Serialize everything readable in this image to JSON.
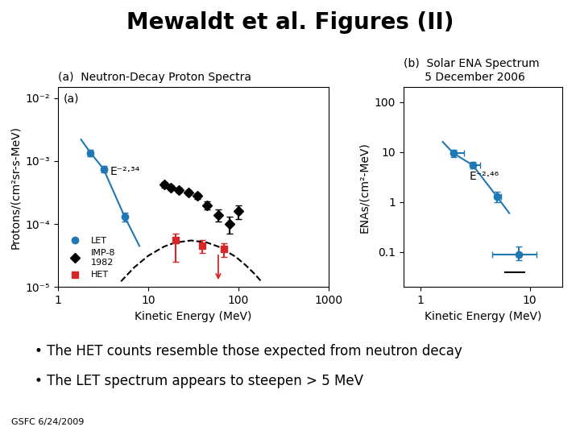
{
  "title": "Mewaldt et al. Figures (II)",
  "annotations": [
    "• The HET counts resemble those expected from neutron decay",
    "• The LET spectrum appears to steepen > 5 MeV",
    "GSFC 6/24/2009"
  ],
  "chart_data": [
    {
      "type": "scatter",
      "title": [
        "(a)  Neutron-Decay Proton Spectra"
      ],
      "x_label": "Kinetic Energy (MeV)",
      "y_label": "Protons/(cm²sr-s-MeV)",
      "log": true,
      "xlim": [
        1,
        1000
      ],
      "ylim": [
        1e-05,
        0.015
      ],
      "xticks": [
        1,
        10,
        100,
        1000
      ],
      "yticks": [
        {
          "value": 1e-05,
          "label": "10⁻⁵"
        },
        {
          "value": 0.0001,
          "label": "10⁻⁴"
        },
        {
          "value": 0.001,
          "label": "10⁻³"
        },
        {
          "value": 0.01,
          "label": "10⁻²"
        }
      ],
      "legend": "lower left",
      "series": [
        {
          "type": "line",
          "line_style": "solid",
          "color": "#1f77b4",
          "x": [
            1.8,
            2.3,
            3.2,
            5.5,
            8.0
          ],
          "values": [
            0.0022,
            0.00135,
            0.00075,
            0.00013,
            4.5e-05
          ]
        },
        {
          "name": "LET",
          "type": "scatter",
          "marker": "circle",
          "color": "#1f77b4",
          "x": [
            2.3,
            3.2,
            5.5
          ],
          "values": [
            0.00135,
            0.00075,
            0.00013
          ],
          "error_low": [
            0.00015,
            9e-05,
            2e-05
          ],
          "error_high": [
            0.00015,
            9e-05,
            2e-05
          ]
        },
        {
          "name": "IMP-8\n1982",
          "type": "scatter",
          "marker": "diamond",
          "color": "#000000",
          "x": [
            15,
            18,
            22,
            28,
            35,
            45,
            60,
            80,
            100
          ],
          "values": [
            0.00042,
            0.00038,
            0.00035,
            0.00032,
            0.00028,
            0.0002,
            0.00014,
            0.0001,
            0.00016
          ],
          "error": [
            4e-05,
            3e-05,
            3e-05,
            3e-05,
            3e-05,
            3e-05,
            3e-05,
            3e-05,
            4e-05
          ]
        },
        {
          "name": "HET",
          "type": "scatter",
          "marker": "square",
          "color": "#d62728",
          "x": [
            20,
            40,
            70
          ],
          "values": [
            5.5e-05,
            4.5e-05,
            4e-05
          ],
          "error_low": [
            3e-05,
            1e-05,
            1e-05
          ],
          "error_high": [
            1.5e-05,
            1e-05,
            1e-05
          ]
        },
        {
          "type": "line",
          "line_style": "dashed",
          "color": "#000000",
          "x": [
            5,
            7,
            10,
            15,
            20,
            30,
            45,
            60,
            90,
            100,
            120,
            150,
            180
          ],
          "values": [
            1.2332e-05,
            2.0512e-05,
            3.1351e-05,
            4.3973e-05,
            5.0946e-05,
            5.5e-05,
            5.0946e-05,
            4.3973e-05,
            3.1351e-05,
            2.8002e-05,
            2.2473e-05,
            1.6461e-05,
            1.2332e-05
          ]
        }
      ],
      "arrows": [
        {
          "x": 60,
          "y_start": 3.5e-05,
          "y_end": 1.2e-05,
          "color": "#d62728"
        }
      ],
      "annotations": [
        {
          "text": "(a)"
        },
        {
          "text": "E⁻²·³⁴",
          "x": 3.8,
          "y": 0.0006
        }
      ]
    },
    {
      "type": "scatter",
      "title": [
        "(b)  Solar ENA Spectrum",
        "      5 December 2006"
      ],
      "x_label": "Kinetic Energy (MeV)",
      "y_label": "ENAs/(cm²-MeV)",
      "log": true,
      "xlim": [
        0.7,
        20
      ],
      "ylim": [
        0.02,
        200
      ],
      "xticks": [
        1,
        10
      ],
      "yticks": [
        0.1,
        1,
        10,
        100
      ],
      "series": [
        {
          "type": "line",
          "line_style": "solid",
          "color": "#1f77b4",
          "x": [
            1.6,
            2.0,
            3.0,
            5.0,
            6.5
          ],
          "values": [
            16.0,
            9.5,
            5.5,
            1.3,
            0.6
          ]
        },
        {
          "type": "scatter",
          "marker": "circle",
          "color": "#1f77b4",
          "x": [
            2.0,
            3.0,
            5.0
          ],
          "values": [
            9.5,
            5.5,
            1.3
          ],
          "error": [
            1.5,
            0.8,
            0.3
          ],
          "x_error_low": [
            0.0,
            0.0,
            0.0
          ],
          "x_error_high": [
            0.5,
            0.5,
            0.5
          ]
        },
        {
          "type": "scatter",
          "marker": "circle",
          "color": "#1f77b4",
          "x": [
            8.0
          ],
          "values": [
            0.09
          ],
          "error_low": [
            0.02
          ],
          "error_high": [
            0.04
          ],
          "x_error": [
            3.5
          ]
        },
        {
          "type": "line",
          "line_style": "solid",
          "color": "#000000",
          "x": [
            6.0,
            9.0
          ],
          "values": [
            0.04,
            0.04
          ]
        }
      ],
      "annotations": [
        {
          "text": "E⁻²·⁴⁶",
          "x": 2.8,
          "y": 2.8
        }
      ]
    }
  ]
}
